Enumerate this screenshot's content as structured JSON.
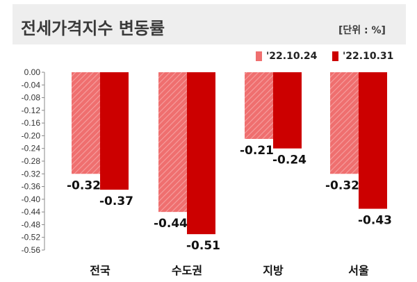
{
  "header": {
    "title": "전세가격지수 변동률",
    "unit": "[단위 : %]"
  },
  "legend": [
    {
      "label": "'22.10.24",
      "color": "#ef6f6f"
    },
    {
      "label": "'22.10.31",
      "color": "#cc0000"
    }
  ],
  "chart_data": {
    "type": "bar",
    "categories": [
      "전국",
      "수도권",
      "지방",
      "서울"
    ],
    "series": [
      {
        "name": "'22.10.24",
        "values": [
          -0.32,
          -0.44,
          -0.21,
          -0.32
        ],
        "labels": [
          "-0.32",
          "-0.44",
          "-0.21",
          "-0.32"
        ],
        "color": "#ef6f6f",
        "pattern": "diagonal-stripes"
      },
      {
        "name": "'22.10.31",
        "values": [
          -0.37,
          -0.51,
          -0.24,
          -0.43
        ],
        "labels": [
          "-0.37",
          "-0.51",
          "-0.24",
          "-0.43"
        ],
        "color": "#cc0000"
      }
    ],
    "ylim": [
      -0.56,
      0.0
    ],
    "yticks": [
      "0.00",
      "-0.04",
      "-0.08",
      "-0.12",
      "-0.16",
      "-0.20",
      "-0.24",
      "-0.28",
      "-0.32",
      "-0.36",
      "-0.40",
      "-0.44",
      "-0.48",
      "-0.52",
      "-0.56"
    ],
    "grid": false,
    "legend_position": "top-right"
  }
}
